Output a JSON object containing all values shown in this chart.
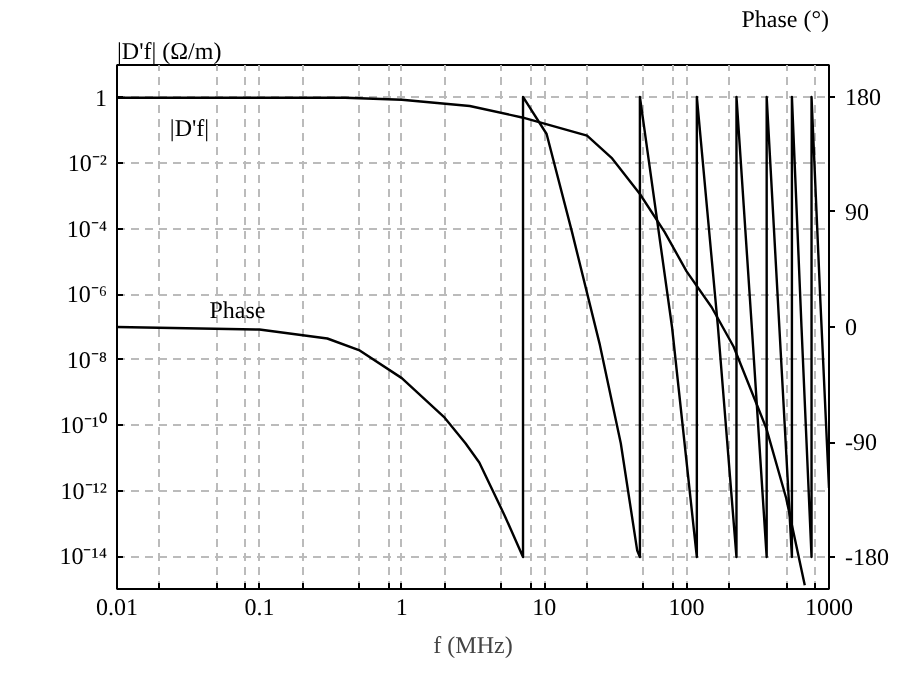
{
  "chart_data": {
    "type": "line",
    "xlabel": "f (MHz)",
    "ylabel": "|D'f| (Ω/m)",
    "y2label": "Phase (°)",
    "log": "xy",
    "xlim": [
      0.01,
      1000
    ],
    "ylim": [
      1e-15,
      10
    ],
    "y2lim": [
      -205,
      205
    ],
    "xticks": [
      0.01,
      {
        "value": 0.02,
        "label": null
      },
      {
        "value": 0.05,
        "label": null
      },
      {
        "value": 0.08,
        "label": null
      },
      0.1,
      {
        "value": 0.2,
        "label": null
      },
      {
        "value": 0.5,
        "label": null
      },
      {
        "value": 0.8,
        "label": null
      },
      1,
      {
        "value": 2,
        "label": null
      },
      {
        "value": 5,
        "label": null
      },
      {
        "value": 8,
        "label": null
      },
      10,
      {
        "value": 20,
        "label": null
      },
      {
        "value": 50,
        "label": null
      },
      {
        "value": 80,
        "label": null
      },
      100,
      {
        "value": 200,
        "label": null
      },
      {
        "value": 500,
        "label": null
      },
      {
        "value": 800,
        "label": null
      },
      1000
    ],
    "yticks": [
      1,
      {
        "value": 0.01,
        "label": "10⁻²"
      },
      {
        "value": 0.0001,
        "label": "10⁻⁴"
      },
      {
        "value": 1e-06,
        "label": "10⁻⁶"
      },
      {
        "value": 1e-08,
        "label": "10⁻⁸"
      },
      {
        "value": 1e-10,
        "label": "10⁻¹⁰"
      },
      {
        "value": 1e-12,
        "label": "10⁻¹²"
      },
      {
        "value": 1e-14,
        "label": "10⁻¹⁴"
      }
    ],
    "y2ticks": [
      -180,
      -90,
      0,
      90,
      180
    ],
    "grid": true,
    "marker": "none",
    "line_style": "solid",
    "series": [
      {
        "name": "|D'f|",
        "color": "#000000",
        "x": [
          0.01,
          0.02,
          0.1,
          0.4,
          1,
          3,
          7,
          20,
          30,
          47,
          70,
          100,
          150,
          214,
          363,
          500,
          676
        ],
        "values": [
          1,
          1,
          1,
          1,
          0.87,
          0.56,
          0.25,
          0.07,
          0.014,
          0.00115,
          8e-05,
          5e-06,
          4e-07,
          2.5e-08,
          8e-11,
          6e-13,
          1.3e-15
        ]
      },
      {
        "name": "Phase",
        "color": "#000000",
        "axis": "y2",
        "x": [
          0.01,
          0.1,
          0.3,
          0.5,
          1,
          2,
          2.8,
          3.5,
          5.3,
          7.1,
          7.1,
          10.4,
          15.7,
          24.6,
          34.5,
          45,
          47,
          47,
          79,
          118,
          118,
          166,
          224,
          224,
          287,
          365,
          365,
          448,
          549,
          549,
          641,
          754,
          754,
          870,
          1000
        ],
        "values": [
          0,
          -2,
          -9,
          -18,
          -40,
          -71,
          -91,
          -106,
          -148,
          -180,
          180,
          151,
          74,
          -14,
          -91,
          -175,
          -180,
          180,
          0,
          -180,
          180,
          0,
          -180,
          180,
          0,
          -180,
          180,
          0,
          -180,
          180,
          0,
          -180,
          180,
          20,
          -126
        ]
      }
    ]
  }
}
